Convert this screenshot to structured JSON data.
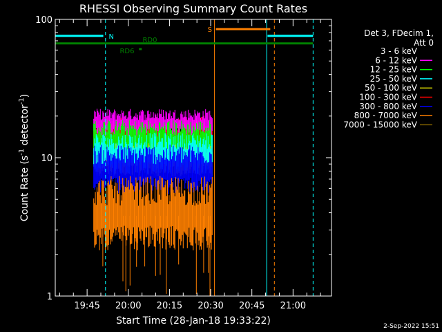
{
  "chart_data": {
    "type": "line",
    "title": "RHESSI Observing Summary Count Rates",
    "xlabel": "Start Time (28-Jan-18 19:33:22)",
    "ylabel": "Count Rate (s",
    "ylabel_sup": "-1",
    "ylabel_rest": " detector",
    "ylabel_sup2": "-1",
    "ylabel_end": ")",
    "y_scale": "log",
    "ylim": [
      1,
      100
    ],
    "x_unit": "minutes since 19:33:22",
    "xlim": [
      0,
      100.6
    ],
    "x_ticks": [
      {
        "t": 11.6,
        "label": "19:45"
      },
      {
        "t": 26.6,
        "label": "20:00"
      },
      {
        "t": 41.6,
        "label": "20:15"
      },
      {
        "t": 56.6,
        "label": "20:30"
      },
      {
        "t": 71.6,
        "label": "20:45"
      },
      {
        "t": 86.6,
        "label": "21:00"
      }
    ],
    "y_ticks": [
      {
        "v": 1,
        "label": "1"
      },
      {
        "v": 10,
        "label": "10"
      },
      {
        "v": 100,
        "label": "100"
      }
    ],
    "grid": false,
    "legend_header": [
      "Det 3, FDecim 1,",
      "Att 0"
    ],
    "legend_position": "top-right",
    "series": [
      {
        "name": "3 - 6 keV",
        "color": "#000000",
        "outline": "#ffffff",
        "level": 19,
        "spread": 0.09
      },
      {
        "name": "6 - 12 keV",
        "color": "#ff00ff",
        "level": 17.5,
        "spread": 0.07
      },
      {
        "name": "12 - 25 keV",
        "color": "#00ff00",
        "level": 13.0,
        "spread": 0.1
      },
      {
        "name": "25 - 50 keV",
        "color": "#00ffff",
        "level": 10.5,
        "spread": 0.1
      },
      {
        "name": "50 - 100 keV",
        "color": "#c8c800",
        "level": 9.5,
        "spread": 0.08
      },
      {
        "name": "100 - 300 keV",
        "color": "#ff0000",
        "level": 14.0,
        "spread": 0.1
      },
      {
        "name": "300 - 800 keV",
        "color": "#0000ff",
        "level": 8.0,
        "spread": 0.12
      },
      {
        "name": "800 - 7000 keV",
        "color": "#ff8000",
        "level": 3.8,
        "spread": 0.18
      },
      {
        "name": "7000 - 15000 keV",
        "color": "#806000",
        "level": 0,
        "spread": 0
      }
    ],
    "data_interval": [
      14.0,
      57.3
    ],
    "flags": [
      {
        "name": "N",
        "color": "#00ffff",
        "y": 76,
        "segments": [
          [
            0,
            17.5
          ],
          [
            77.3,
            93.9
          ]
        ],
        "label_t": 19.5,
        "label": "N"
      },
      {
        "name": "S",
        "color": "#ff8000",
        "y": 85,
        "segments": [
          [
            58.5,
            78.3
          ]
        ],
        "label_t": 55.5,
        "label": "S"
      },
      {
        "name": "RD0",
        "color": "#008000",
        "y": 67,
        "segments": [
          [
            0,
            93.9
          ]
        ],
        "label_t": 31.8,
        "label": "RD0"
      },
      {
        "name": "RD6",
        "color": "#008000",
        "y": 61,
        "segments": [
          [
            30.5,
            31.5
          ]
        ],
        "label_t": 23.5,
        "label": "RD6"
      }
    ],
    "vlines": [
      {
        "t": 18.3,
        "color": "#00ffff",
        "style": "dashed"
      },
      {
        "t": 77.0,
        "color": "#00ffff",
        "style": "solid"
      },
      {
        "t": 93.9,
        "color": "#00ffff",
        "style": "dashed"
      },
      {
        "t": 58.0,
        "color": "#ff8000",
        "style": "solid"
      },
      {
        "t": 79.8,
        "color": "#ff8000",
        "style": "dashed"
      }
    ]
  },
  "footer": {
    "date": "2-Sep-2022 15:51"
  }
}
